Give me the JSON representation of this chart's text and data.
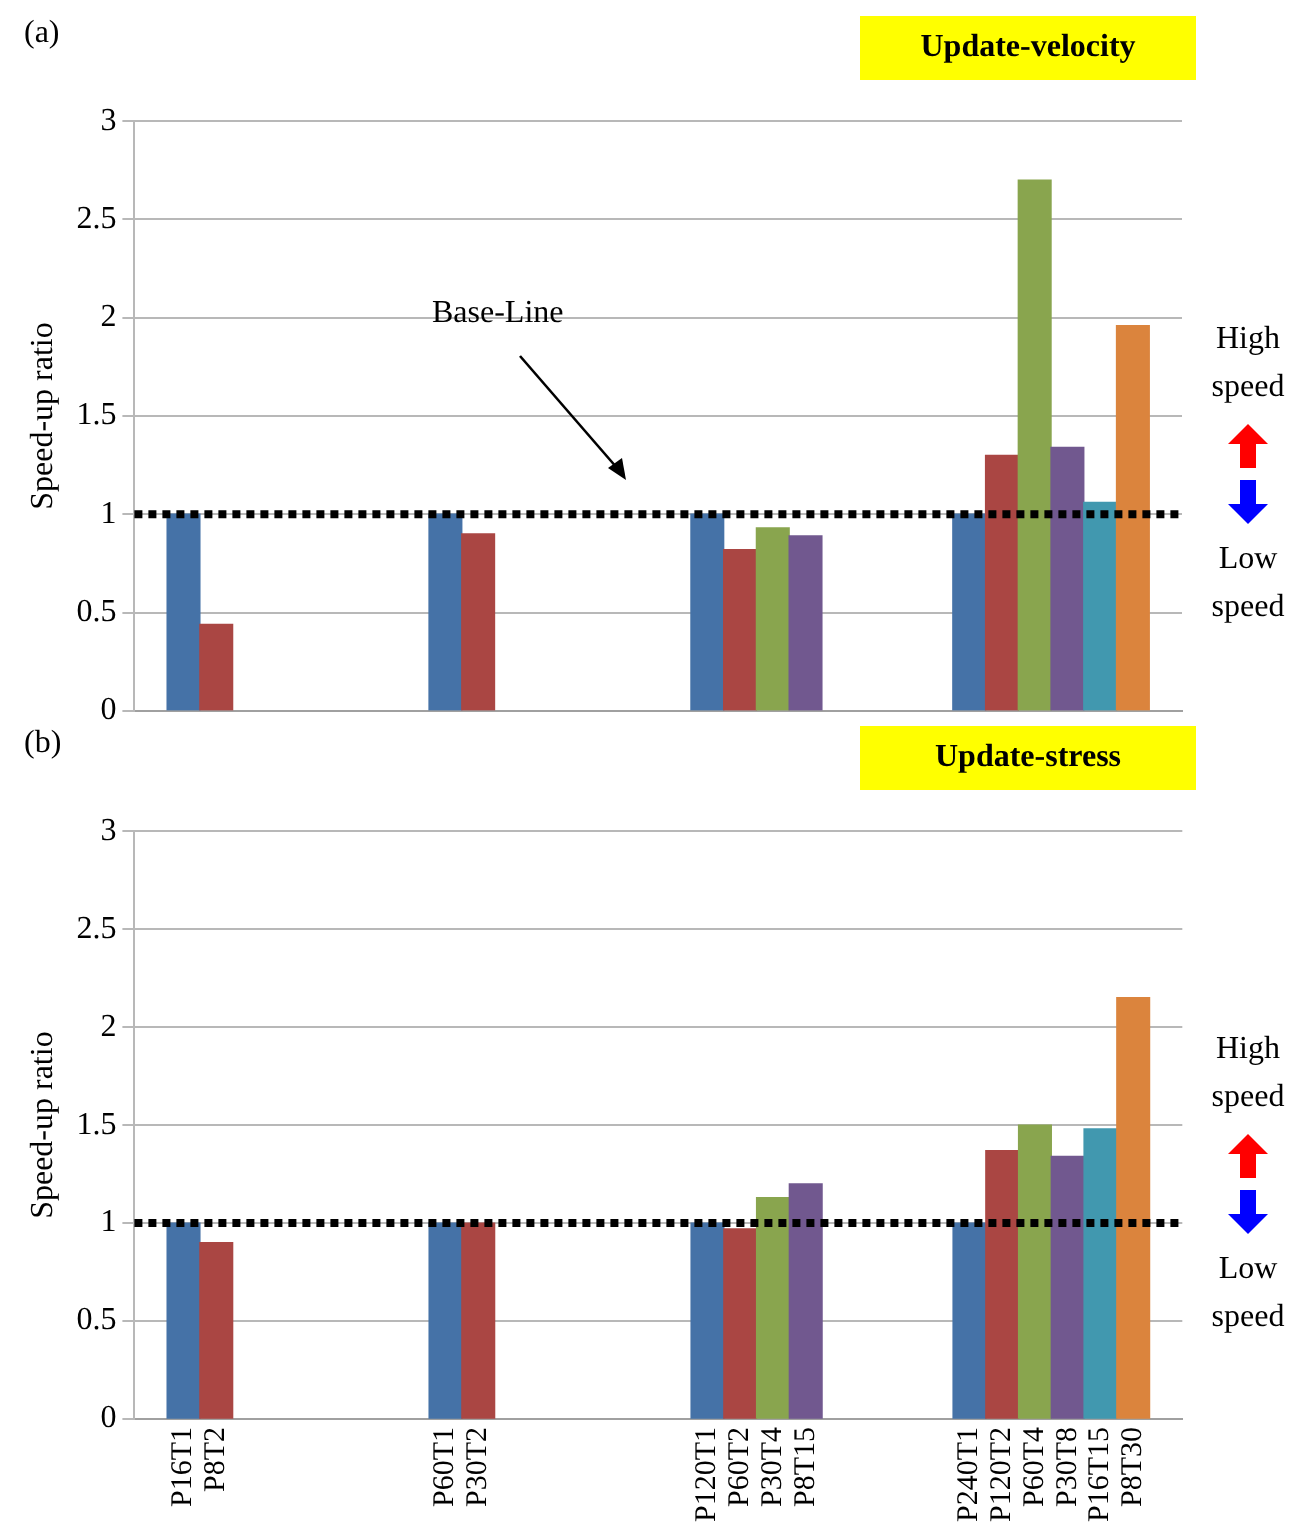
{
  "chart_data": [
    {
      "type": "bar",
      "title": "Update-velocity",
      "ylabel": "Speed-up ratio",
      "categories": [
        null,
        null,
        null,
        null,
        null,
        null,
        null,
        null,
        null,
        null,
        null,
        null,
        null,
        null,
        null,
        null,
        null,
        null,
        null,
        null,
        null,
        null,
        null,
        null,
        null,
        null,
        null,
        null,
        null,
        null,
        null,
        null
      ],
      "values": [
        null,
        1,
        0.44,
        null,
        null,
        null,
        null,
        null,
        null,
        1,
        0.9,
        null,
        null,
        null,
        null,
        null,
        null,
        1,
        0.82,
        0.93,
        0.89,
        null,
        null,
        null,
        null,
        1,
        1.3,
        2.7,
        1.34,
        1.06,
        1.96,
        null
      ],
      "colors": [
        "#4572a7",
        "#4572a7",
        "#aa4643",
        "#4572a7",
        "#4572a7",
        "#4572a7",
        "#4572a7",
        "#4572a7",
        "#4572a7",
        "#4572a7",
        "#aa4643",
        "#4572a7",
        "#4572a7",
        "#4572a7",
        "#4572a7",
        "#4572a7",
        "#4572a7",
        "#4572a7",
        "#aa4643",
        "#89a54e",
        "#71588f",
        "#4572a7",
        "#4572a7",
        "#4572a7",
        "#4572a7",
        "#4572a7",
        "#aa4643",
        "#89a54e",
        "#71588f",
        "#4198af",
        "#db843d",
        "#4572a7"
      ],
      "ylim": [
        0,
        3
      ],
      "yticks": [
        0,
        0.5,
        1,
        1.5,
        2,
        2.5,
        3
      ],
      "grid": "y",
      "tick_labels": "y",
      "ref_lines": [
        {
          "axis": "y",
          "value": 1,
          "color": "#000000",
          "line_style": "dotted"
        }
      ],
      "annotations": [
        "(a)",
        "Base-Line",
        "High speed",
        "Low speed"
      ]
    },
    {
      "type": "bar",
      "title": "Update-stress",
      "ylabel": "Speed-up ratio",
      "categories": [
        null,
        "P16T1",
        "P8T2",
        null,
        null,
        null,
        null,
        null,
        null,
        "P60T1",
        "P30T2",
        null,
        null,
        null,
        null,
        null,
        null,
        "P120T1",
        "P60T2",
        "P30T4",
        "P8T15",
        null,
        null,
        null,
        null,
        "P240T1",
        "P120T2",
        "P60T4",
        "P30T8",
        "P16T15",
        "P8T30",
        null
      ],
      "values": [
        null,
        1,
        0.9,
        null,
        null,
        null,
        null,
        null,
        null,
        1,
        1,
        null,
        null,
        null,
        null,
        null,
        null,
        1,
        0.97,
        1.13,
        1.2,
        null,
        null,
        null,
        null,
        1,
        1.37,
        1.5,
        1.34,
        1.48,
        2.15,
        null
      ],
      "colors": [
        "#4572a7",
        "#4572a7",
        "#aa4643",
        "#4572a7",
        "#4572a7",
        "#4572a7",
        "#4572a7",
        "#4572a7",
        "#4572a7",
        "#4572a7",
        "#aa4643",
        "#4572a7",
        "#4572a7",
        "#4572a7",
        "#4572a7",
        "#4572a7",
        "#4572a7",
        "#4572a7",
        "#aa4643",
        "#89a54e",
        "#71588f",
        "#4572a7",
        "#4572a7",
        "#4572a7",
        "#4572a7",
        "#4572a7",
        "#aa4643",
        "#89a54e",
        "#71588f",
        "#4198af",
        "#db843d",
        "#4572a7"
      ],
      "ylim": [
        0,
        3
      ],
      "yticks": [
        0,
        0.5,
        1,
        1.5,
        2,
        2.5,
        3
      ],
      "grid": "y",
      "ref_lines": [
        {
          "axis": "y",
          "value": 1,
          "color": "#000000",
          "line_style": "dotted"
        }
      ],
      "annotations": [
        "(b)",
        "High speed",
        "Low speed"
      ]
    }
  ]
}
